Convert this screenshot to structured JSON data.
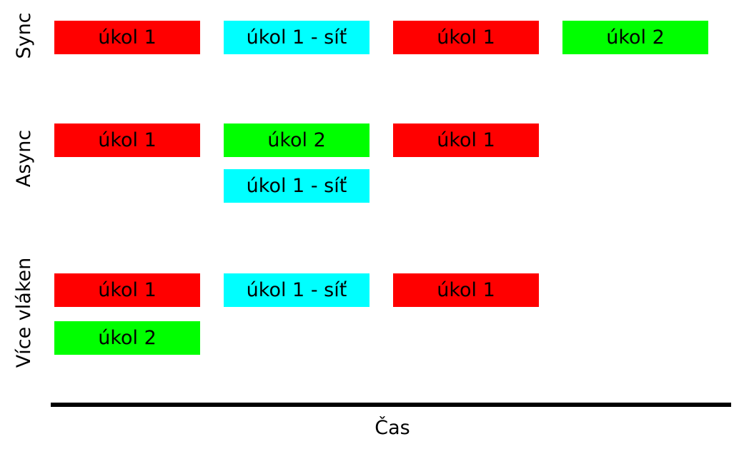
{
  "colors": {
    "cpu_task_1": "#ff0000",
    "cpu_task_2": "#00ff00",
    "network_task": "#00ffff",
    "axis": "#000000"
  },
  "axis": {
    "label": "Čas"
  },
  "rows": {
    "sync": {
      "label": "Sync",
      "tasks": [
        "úkol 1",
        "úkol 1 - síť",
        "úkol 1",
        "úkol 2"
      ]
    },
    "async": {
      "label": "Async",
      "tasks": [
        "úkol 1",
        "úkol 2",
        "úkol 1",
        "úkol 1 - síť"
      ]
    },
    "threads": {
      "label": "Více vláken",
      "tasks": [
        "úkol 1",
        "úkol 1 - síť",
        "úkol 1",
        "úkol 2"
      ]
    }
  }
}
